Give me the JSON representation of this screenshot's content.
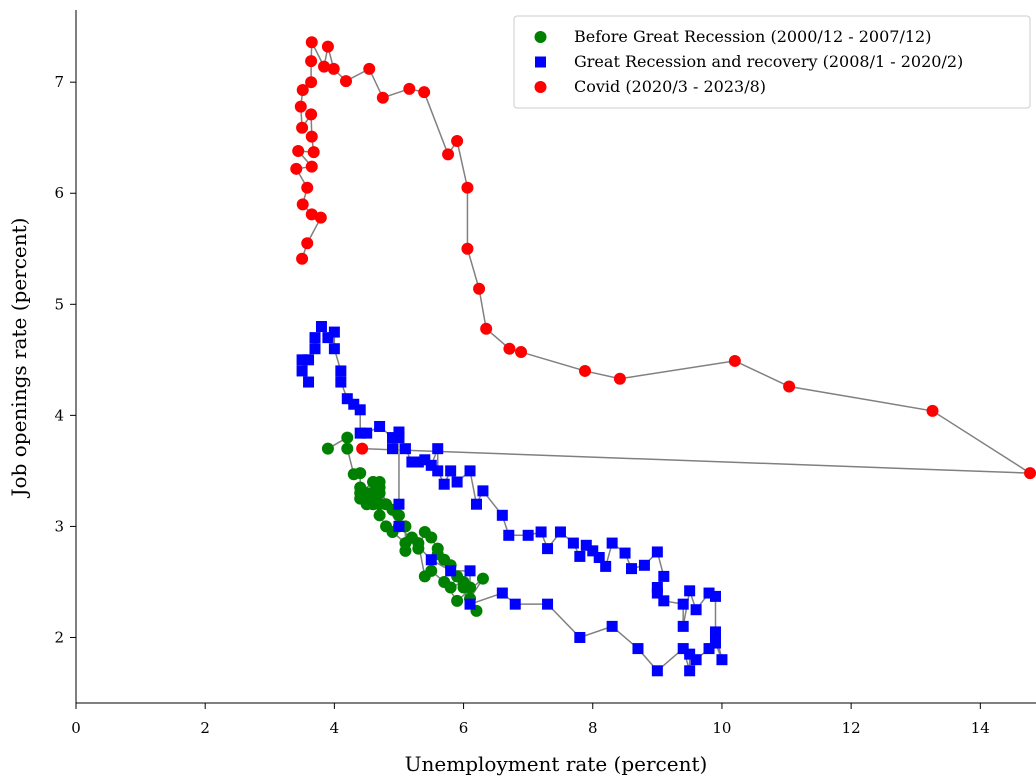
{
  "chart_data": {
    "type": "scatter-path",
    "xlabel": "Unemployment rate (percent)",
    "ylabel": "Job openings rate (percent)",
    "xlim": [
      0,
      14.8
    ],
    "ylim": [
      1.41,
      7.65
    ],
    "xticks": [
      0,
      2,
      4,
      6,
      8,
      10,
      12,
      14
    ],
    "yticks": [
      2,
      3,
      4,
      5,
      6,
      7
    ],
    "line_color": "#808080",
    "legend": "upper right",
    "series": [
      {
        "name": "Before Great Recession (2000/12 - 2007/12)",
        "color": "#008000",
        "marker": "circle",
        "x": [
          3.9,
          4.2,
          4.2,
          4.3,
          4.4,
          4.4,
          4.4,
          4.5,
          4.6,
          4.7,
          4.6,
          4.7,
          4.7,
          4.8,
          4.9,
          5.0,
          5.1,
          5.1,
          5.2,
          5.3,
          5.4,
          5.5,
          5.6,
          5.6,
          5.7,
          5.8,
          5.9,
          5.8,
          6.0,
          6.0,
          6.1,
          6.2,
          6.1,
          6.3,
          5.9,
          5.7,
          5.5,
          5.4,
          5.3,
          5.1,
          4.9,
          4.8,
          4.7,
          4.6,
          4.6,
          4.5,
          4.4,
          4.6,
          4.7,
          5.0
        ],
        "y": [
          3.7,
          3.8,
          3.7,
          3.47,
          3.48,
          3.35,
          3.25,
          3.3,
          3.4,
          3.35,
          3.2,
          3.2,
          3.4,
          3.2,
          3.15,
          3.1,
          3.0,
          2.78,
          2.9,
          2.8,
          2.95,
          2.9,
          2.8,
          2.75,
          2.7,
          2.65,
          2.55,
          2.45,
          2.5,
          2.45,
          2.45,
          2.24,
          2.35,
          2.53,
          2.33,
          2.5,
          2.6,
          2.55,
          2.85,
          2.85,
          2.95,
          3.0,
          3.1,
          3.25,
          3.3,
          3.2,
          3.3,
          3.4,
          3.3,
          3.0
        ]
      },
      {
        "name": "Great Recession and recovery (2008/1 - 2020/2)",
        "color": "#0000ff",
        "marker": "square",
        "x": [
          5.0,
          5.0,
          5.0,
          5.5,
          5.8,
          6.1,
          6.1,
          6.6,
          6.8,
          7.3,
          7.8,
          8.3,
          8.7,
          9.0,
          9.4,
          9.5,
          9.5,
          9.6,
          9.8,
          9.9,
          10.0,
          9.9,
          9.9,
          9.9,
          9.8,
          9.6,
          9.5,
          9.4,
          9.4,
          9.1,
          9.0,
          9.0,
          9.1,
          9.0,
          8.8,
          8.6,
          8.5,
          8.3,
          8.2,
          8.1,
          8.0,
          7.9,
          7.8,
          7.7,
          7.5,
          7.3,
          7.2,
          7.0,
          6.7,
          6.6,
          6.3,
          6.2,
          6.1,
          5.9,
          5.8,
          5.7,
          5.6,
          5.6,
          5.5,
          5.4,
          5.3,
          5.2,
          5.1,
          5.0,
          4.9,
          4.9,
          4.7,
          4.5,
          4.4,
          4.4,
          4.3,
          4.2,
          4.1,
          4.1,
          4.0,
          4.0,
          3.9,
          3.8,
          3.7,
          3.7,
          3.6,
          3.5,
          3.6,
          3.5
        ],
        "y": [
          3.8,
          3.2,
          3.0,
          2.7,
          2.6,
          2.6,
          2.3,
          2.4,
          2.3,
          2.3,
          2.0,
          2.1,
          1.9,
          1.7,
          1.9,
          1.7,
          1.85,
          1.8,
          1.9,
          1.95,
          1.8,
          2.05,
          2.0,
          2.37,
          2.4,
          2.25,
          2.42,
          2.1,
          2.3,
          2.33,
          2.4,
          2.45,
          2.55,
          2.77,
          2.65,
          2.62,
          2.76,
          2.85,
          2.64,
          2.72,
          2.78,
          2.83,
          2.73,
          2.85,
          2.95,
          2.8,
          2.95,
          2.92,
          2.92,
          3.1,
          3.32,
          3.2,
          3.5,
          3.4,
          3.5,
          3.38,
          3.5,
          3.7,
          3.55,
          3.6,
          3.58,
          3.58,
          3.7,
          3.85,
          3.7,
          3.8,
          3.9,
          3.84,
          3.84,
          4.05,
          4.1,
          4.15,
          4.3,
          4.4,
          4.6,
          4.75,
          4.7,
          4.8,
          4.6,
          4.7,
          4.5,
          4.5,
          4.3,
          4.4
        ]
      },
      {
        "name": "Covid (2020/3 - 2023/8)",
        "color": "#ff0000",
        "marker": "circle",
        "x": [
          4.43,
          14.77,
          13.26,
          11.04,
          10.2,
          8.42,
          7.88,
          6.89,
          6.71,
          6.35,
          6.24,
          6.06,
          6.06,
          5.9,
          5.76,
          5.39,
          5.16,
          4.75,
          4.54,
          4.18,
          3.99,
          3.9,
          3.84,
          3.65,
          3.64,
          3.64,
          3.51,
          3.48,
          3.5,
          3.64,
          3.65,
          3.68,
          3.44,
          3.65,
          3.41,
          3.58,
          3.51,
          3.65,
          3.79,
          3.58,
          3.5
        ],
        "y": [
          3.7,
          3.48,
          4.04,
          4.26,
          4.49,
          4.33,
          4.4,
          4.57,
          4.6,
          4.78,
          5.14,
          5.5,
          6.05,
          6.47,
          6.35,
          6.91,
          6.94,
          6.86,
          7.12,
          7.01,
          7.12,
          7.32,
          7.14,
          7.36,
          7.19,
          7.0,
          6.93,
          6.78,
          6.59,
          6.71,
          6.51,
          6.37,
          6.38,
          6.24,
          6.22,
          6.05,
          5.9,
          5.81,
          5.78,
          5.55,
          5.41
        ]
      }
    ]
  }
}
